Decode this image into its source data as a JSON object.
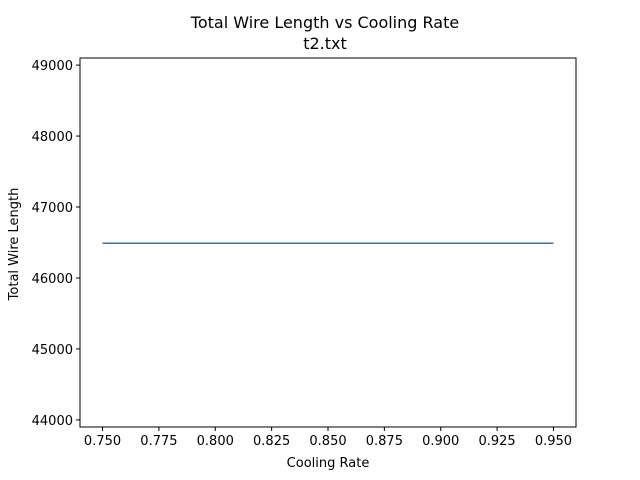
{
  "chart_data": {
    "type": "line",
    "title": "Total Wire Length vs Cooling Rate",
    "subtitle": "t2.txt",
    "xlabel": "Cooling Rate",
    "ylabel": "Total Wire Length",
    "xlim": [
      0.74,
      0.96
    ],
    "ylim": [
      43900,
      49100
    ],
    "xticks": [
      "0.750",
      "0.775",
      "0.800",
      "0.825",
      "0.850",
      "0.875",
      "0.900",
      "0.925",
      "0.950"
    ],
    "yticks": [
      "44000",
      "45000",
      "46000",
      "47000",
      "48000",
      "49000"
    ],
    "grid": false,
    "series": [
      {
        "color": "#1f77b4",
        "x": [
          0.75,
          0.95
        ],
        "y": [
          46490,
          46490
        ]
      }
    ]
  }
}
